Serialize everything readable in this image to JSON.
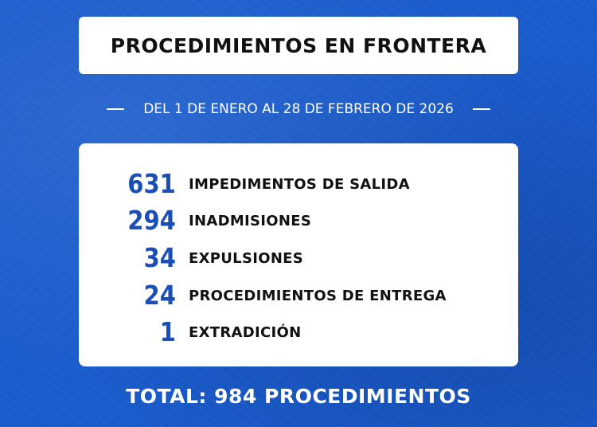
{
  "title": "PROCEDIMIENTOS EN FRONTERA",
  "date_range": "DEL 1 DE ENERO AL 28 DE FEBRERO DE 2026",
  "stats": [
    {
      "value": "631",
      "label": "IMPEDIMENTOS DE SALIDA"
    },
    {
      "value": "294",
      "label": "INADMISIONES"
    },
    {
      "value": "34",
      "label": "EXPULSIONES"
    },
    {
      "value": "24",
      "label": "PROCEDIMIENTOS DE ENTREGA"
    },
    {
      "value": "1",
      "label": "EXTRADICIÓN"
    }
  ],
  "total": "TOTAL: 984 PROCEDIMIENTOS",
  "colors": {
    "background": "#1a5ccc",
    "number_accent": "#1a4fb8",
    "card": "#ffffff",
    "text_dark": "#111111"
  }
}
